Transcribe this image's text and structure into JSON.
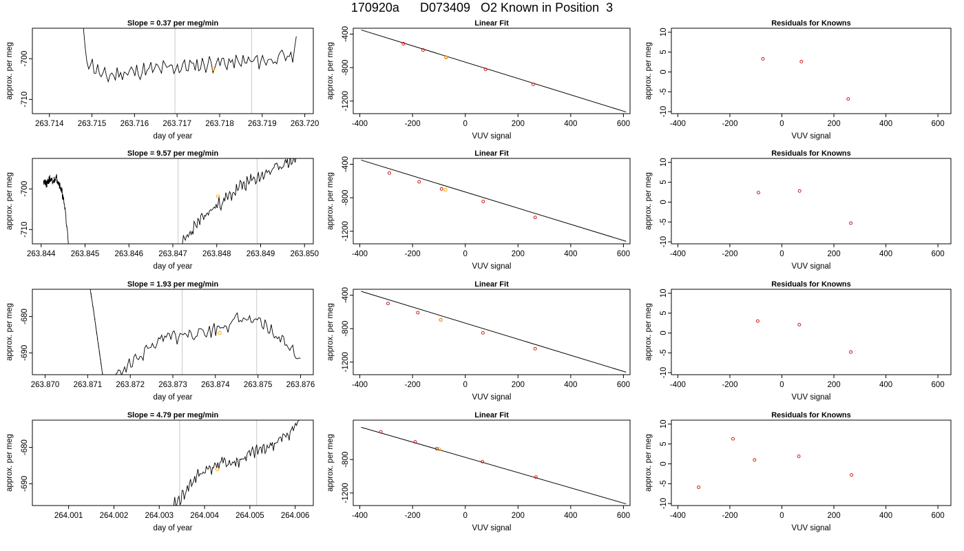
{
  "page_title": "170920a      D073409   O2 Known in Position  3",
  "colors": {
    "trace": "#000000",
    "guide": "#c8c8c8",
    "known_point": "#ffa500",
    "fit_point": "#cc0000",
    "axis": "#000000"
  },
  "rows": [
    {
      "timeseries": {
        "title": "Slope =  0.37  per meg/min",
        "xlabel": "day of year",
        "ylabel": "approx. per meg",
        "xlim": [
          263.7136,
          263.7202
        ],
        "ylim": [
          -713.5,
          -692.5
        ],
        "xticks": [
          263.714,
          263.715,
          263.716,
          263.717,
          263.718,
          263.719,
          263.72
        ],
        "xtick_labels": [
          "263.714",
          "263.715",
          "263.716",
          "263.717",
          "263.718",
          "263.719",
          "263.720"
        ],
        "yticks": [
          -700,
          -710
        ],
        "ytick_labels": [
          "-700",
          "-710"
        ],
        "vlines": [
          263.71695,
          263.71875
        ],
        "trace": {
          "x_start": 263.7148,
          "x_end": 263.7198,
          "y_start": -692.5,
          "y_end": -694.5,
          "base": [
            -699.0,
            -704.5,
            -703.5,
            -703.0,
            -702.5,
            -702.0,
            -701.5,
            -701.0,
            -701.0,
            -700.5,
            -700.0,
            -699.0
          ],
          "amp": 1.6,
          "seed": 11
        },
        "known_point": {
          "x": 263.71785,
          "y": -702.5
        }
      },
      "fit": {
        "title": "Linear Fit",
        "xlabel": "VUV signal",
        "ylabel": "approx. per meg",
        "xlim": [
          -425,
          625
        ],
        "ylim": [
          -1350,
          -330
        ],
        "xticks": [
          -400,
          -200,
          0,
          200,
          400,
          600
        ],
        "xtick_labels": [
          "-400",
          "-200",
          "0",
          "200",
          "400",
          "600"
        ],
        "yticks": [
          -400,
          -800,
          -1200
        ],
        "ytick_labels": [
          "-400",
          "-800",
          "-1200"
        ],
        "line": {
          "x1": -395,
          "y1": -350,
          "x2": 610,
          "y2": -1330
        },
        "points": [
          {
            "x": -235,
            "y": -515
          },
          {
            "x": -160,
            "y": -590
          },
          {
            "x": -73,
            "y": -675
          },
          {
            "x": 77,
            "y": -822
          },
          {
            "x": 258,
            "y": -1000
          }
        ],
        "known_point": {
          "x": -73,
          "y": -678
        }
      },
      "resid": {
        "title": "Residuals for Knowns",
        "xlabel": "VUV signal",
        "ylabel": "approx. per meg",
        "xlim": [
          -425,
          650
        ],
        "ylim": [
          -10.5,
          11
        ],
        "xticks": [
          -400,
          -200,
          0,
          200,
          400,
          600
        ],
        "xtick_labels": [
          "-400",
          "-200",
          "0",
          "200",
          "400",
          "600"
        ],
        "yticks": [
          10,
          5,
          0,
          -5,
          -10
        ],
        "ytick_labels": [
          "10",
          "5",
          "0",
          "-5",
          "-10"
        ],
        "points": [
          {
            "x": -73,
            "y": 3.3
          },
          {
            "x": 75,
            "y": 2.6
          },
          {
            "x": 255,
            "y": -6.8
          }
        ]
      }
    },
    {
      "timeseries": {
        "title": "Slope =  9.57  per meg/min",
        "xlabel": "day of year",
        "ylabel": "approx. per meg",
        "xlim": [
          263.8438,
          263.8502
        ],
        "ylim": [
          -713.5,
          -692.5
        ],
        "xticks": [
          263.844,
          263.845,
          263.846,
          263.847,
          263.848,
          263.849,
          263.85
        ],
        "xtick_labels": [
          "263.844",
          "263.845",
          "263.846",
          "263.847",
          "263.848",
          "263.849",
          "263.850"
        ],
        "yticks": [
          -700,
          -710
        ],
        "ytick_labels": [
          "-700",
          "-710"
        ],
        "vlines": [
          263.84712,
          263.84892
        ],
        "trace_segments": [
          {
            "x_start": 263.84405,
            "x_end": 263.84462,
            "y_start": -698.0,
            "y_end": -713.5,
            "base": [
              -698.0,
              -699.0,
              -697.5,
              -698.5,
              -697.0,
              -698.5,
              -701.0,
              -705.0,
              -713.5
            ],
            "amp": 0.8,
            "seed": 21
          },
          {
            "x_start": 263.84722,
            "x_end": 263.84985,
            "y_start": -713.5,
            "y_end": -692.5,
            "base": [
              -713.5,
              -709.5,
              -706.5,
              -704.0,
              -702.0,
              -699.5,
              -698.0,
              -696.5,
              -695.0,
              -693.5,
              -692.6
            ],
            "amp": 1.3,
            "seed": 23
          }
        ],
        "known_point": {
          "x": 263.84803,
          "y": -701.8
        }
      },
      "fit": {
        "title": "Linear Fit",
        "xlabel": "VUV signal",
        "ylabel": "approx. per meg",
        "xlim": [
          -425,
          625
        ],
        "ylim": [
          -1350,
          -330
        ],
        "xticks": [
          -400,
          -200,
          0,
          200,
          400,
          600
        ],
        "xtick_labels": [
          "-400",
          "-200",
          "0",
          "200",
          "400",
          "600"
        ],
        "yticks": [
          -400,
          -800,
          -1200
        ],
        "ytick_labels": [
          "-400",
          "-800",
          "-1200"
        ],
        "line": {
          "x1": -395,
          "y1": -350,
          "x2": 610,
          "y2": -1320
        },
        "points": [
          {
            "x": -288,
            "y": -505
          },
          {
            "x": -175,
            "y": -610
          },
          {
            "x": -90,
            "y": -695
          },
          {
            "x": 68,
            "y": -845
          },
          {
            "x": 265,
            "y": -1035
          }
        ],
        "known_point": {
          "x": -75,
          "y": -705
        }
      },
      "resid": {
        "title": "Residuals for Knowns",
        "xlabel": "VUV signal",
        "ylabel": "approx. per meg",
        "xlim": [
          -425,
          650
        ],
        "ylim": [
          -10.5,
          11
        ],
        "xticks": [
          -400,
          -200,
          0,
          200,
          400,
          600
        ],
        "xtick_labels": [
          "-400",
          "-200",
          "0",
          "200",
          "400",
          "600"
        ],
        "yticks": [
          10,
          5,
          0,
          -5,
          -10
        ],
        "ytick_labels": [
          "10",
          "5",
          "0",
          "-5",
          "-10"
        ],
        "points": [
          {
            "x": -90,
            "y": 2.4
          },
          {
            "x": 68,
            "y": 2.8
          },
          {
            "x": 265,
            "y": -5.3
          }
        ]
      }
    },
    {
      "timeseries": {
        "title": "Slope =  1.93  per meg/min",
        "xlabel": "day of year",
        "ylabel": "approx. per meg",
        "xlim": [
          263.8697,
          263.8763
        ],
        "ylim": [
          -696,
          -672.5
        ],
        "xticks": [
          263.87,
          263.871,
          263.872,
          263.873,
          263.874,
          263.875,
          263.876
        ],
        "xtick_labels": [
          "263.870",
          "263.871",
          "263.872",
          "263.873",
          "263.874",
          "263.875",
          "263.876"
        ],
        "yticks": [
          -680,
          -690
        ],
        "ytick_labels": [
          "-680",
          "-690"
        ],
        "trace_segments": [
          {
            "x_start": 263.87106,
            "x_end": 263.87135,
            "y_start": -672.5,
            "y_end": -696,
            "base": [
              -672.5,
              -678.0,
              -684.0,
              -690.0,
              -696.0
            ],
            "amp": 0.2,
            "seed": 31
          },
          {
            "x_start": 263.87165,
            "x_end": 263.876,
            "y_start": -696,
            "y_end": -691.5,
            "base": [
              -696.0,
              -694.0,
              -691.0,
              -688.5,
              -686.5,
              -685.5,
              -685.0,
              -684.5,
              -684.0,
              -683.0,
              -681.5,
              -680.5,
              -681.5,
              -683.0,
              -685.5,
              -688.0,
              -691.5
            ],
            "amp": 1.7,
            "seed": 33
          }
        ],
        "vlines": [
          263.87322,
          263.87497
        ],
        "known_point": {
          "x": 263.8741,
          "y": -684.5
        }
      },
      "fit": {
        "title": "Linear Fit",
        "xlabel": "VUV signal",
        "ylabel": "approx. per meg",
        "xlim": [
          -425,
          625
        ],
        "ylim": [
          -1350,
          -330
        ],
        "xticks": [
          -400,
          -200,
          0,
          200,
          400,
          600
        ],
        "xtick_labels": [
          "-400",
          "-200",
          "0",
          "200",
          "400",
          "600"
        ],
        "yticks": [
          -400,
          -800,
          -1200
        ],
        "ytick_labels": [
          "-400",
          "-800",
          "-1200"
        ],
        "line": {
          "x1": -395,
          "y1": -355,
          "x2": 610,
          "y2": -1320
        },
        "points": [
          {
            "x": -293,
            "y": -500
          },
          {
            "x": -180,
            "y": -610
          },
          {
            "x": -93,
            "y": -695
          },
          {
            "x": 67,
            "y": -850
          },
          {
            "x": 265,
            "y": -1040
          }
        ],
        "known_point": {
          "x": -93,
          "y": -695
        }
      },
      "resid": {
        "title": "Residuals for Knowns",
        "xlabel": "VUV signal",
        "ylabel": "approx. per meg",
        "xlim": [
          -425,
          650
        ],
        "ylim": [
          -10.5,
          11
        ],
        "xticks": [
          -400,
          -200,
          0,
          200,
          400,
          600
        ],
        "xtick_labels": [
          "-400",
          "-200",
          "0",
          "200",
          "400",
          "600"
        ],
        "yticks": [
          10,
          5,
          0,
          -5,
          -10
        ],
        "ytick_labels": [
          "10",
          "5",
          "0",
          "-5",
          "-10"
        ],
        "points": [
          {
            "x": -93,
            "y": 3.0
          },
          {
            "x": 67,
            "y": 2.1
          },
          {
            "x": 265,
            "y": -4.8
          }
        ]
      }
    },
    {
      "timeseries": {
        "title": "Slope =  4.79  per meg/min",
        "xlabel": "day of year",
        "ylabel": "approx. per meg",
        "xlim": [
          264.0002,
          264.0064
        ],
        "ylim": [
          -696,
          -672.5
        ],
        "xticks": [
          264.001,
          264.002,
          264.003,
          264.004,
          264.005,
          264.006
        ],
        "xtick_labels": [
          "264.001",
          "264.002",
          "264.003",
          "264.004",
          "264.005",
          "264.006"
        ],
        "yticks": [
          -680,
          -690
        ],
        "ytick_labels": [
          "-680",
          "-690"
        ],
        "trace_segments": [
          {
            "x_start": 264.00332,
            "x_end": 264.0061,
            "y_start": -696,
            "y_end": -672.5,
            "base": [
              -696.0,
              -693.5,
              -690.0,
              -687.5,
              -686.0,
              -685.0,
              -684.0,
              -684.5,
              -683.5,
              -682.0,
              -681.0,
              -680.0,
              -679.0,
              -677.5,
              -675.5,
              -672.6
            ],
            "amp": 1.4,
            "seed": 41
          }
        ],
        "vlines": [
          264.00345,
          264.00515
        ],
        "known_point": {
          "x": 264.00428,
          "y": -686.0
        }
      },
      "fit": {
        "title": "Linear Fit",
        "xlabel": "VUV signal",
        "ylabel": "approx. per meg",
        "xlim": [
          -425,
          625
        ],
        "ylim": [
          -1350,
          -330
        ],
        "xticks": [
          -400,
          -200,
          0,
          200,
          400,
          600
        ],
        "xtick_labels": [
          "-400",
          "-200",
          "0",
          "200",
          "400",
          "600"
        ],
        "yticks": [
          -800,
          -1200
        ],
        "ytick_labels": [
          "-800",
          "-1200"
        ],
        "line": {
          "x1": -395,
          "y1": -415,
          "x2": 610,
          "y2": -1330
        },
        "points": [
          {
            "x": -320,
            "y": -470
          },
          {
            "x": -190,
            "y": -590
          },
          {
            "x": -108,
            "y": -670
          },
          {
            "x": 65,
            "y": -825
          },
          {
            "x": 268,
            "y": -1010
          }
        ],
        "known_point": {
          "x": -100,
          "y": -675
        }
      },
      "resid": {
        "title": "Residuals for Knowns",
        "xlabel": "VUV signal",
        "ylabel": "approx. per meg",
        "xlim": [
          -425,
          650
        ],
        "ylim": [
          -10.5,
          11
        ],
        "xticks": [
          -400,
          -200,
          0,
          200,
          400,
          600
        ],
        "xtick_labels": [
          "-400",
          "-200",
          "0",
          "200",
          "400",
          "600"
        ],
        "yticks": [
          10,
          5,
          0,
          -5,
          -10
        ],
        "ytick_labels": [
          "10",
          "5",
          "0",
          "-5",
          "-10"
        ],
        "points": [
          {
            "x": -320,
            "y": -5.9
          },
          {
            "x": -188,
            "y": 6.3
          },
          {
            "x": -105,
            "y": 1.0
          },
          {
            "x": 65,
            "y": 1.9
          },
          {
            "x": 268,
            "y": -2.8
          }
        ]
      }
    }
  ],
  "chart_data": [
    {
      "type": "line",
      "title": "Slope =  0.37  per meg/min",
      "xlabel": "day of year",
      "ylabel": "approx. per meg",
      "xlim": [
        263.7136,
        263.7202
      ],
      "ylim": [
        -713.5,
        -692.5
      ],
      "known": {
        "x": 263.71785,
        "y": -702.5
      }
    },
    {
      "type": "scatter",
      "title": "Linear Fit",
      "xlabel": "VUV signal",
      "ylabel": "approx. per meg",
      "x": [
        -235,
        -160,
        -73,
        77,
        258
      ],
      "y": [
        -515,
        -590,
        -675,
        -822,
        -1000
      ]
    },
    {
      "type": "scatter",
      "title": "Residuals for Knowns",
      "xlabel": "VUV signal",
      "ylabel": "approx. per meg",
      "x": [
        -73,
        75,
        255
      ],
      "y": [
        3.3,
        2.6,
        -6.8
      ]
    },
    {
      "type": "line",
      "title": "Slope =  9.57  per meg/min",
      "xlabel": "day of year",
      "ylabel": "approx. per meg",
      "xlim": [
        263.8438,
        263.8502
      ],
      "ylim": [
        -713.5,
        -692.5
      ],
      "known": {
        "x": 263.84803,
        "y": -701.8
      }
    },
    {
      "type": "scatter",
      "title": "Linear Fit",
      "xlabel": "VUV signal",
      "ylabel": "approx. per meg",
      "x": [
        -288,
        -175,
        -90,
        68,
        265
      ],
      "y": [
        -505,
        -610,
        -695,
        -845,
        -1035
      ]
    },
    {
      "type": "scatter",
      "title": "Residuals for Knowns",
      "xlabel": "VUV signal",
      "ylabel": "approx. per meg",
      "x": [
        -90,
        68,
        265
      ],
      "y": [
        2.4,
        2.8,
        -5.3
      ]
    },
    {
      "type": "line",
      "title": "Slope =  1.93  per meg/min",
      "xlabel": "day of year",
      "ylabel": "approx. per meg",
      "xlim": [
        263.8697,
        263.8763
      ],
      "ylim": [
        -696,
        -672.5
      ],
      "known": {
        "x": 263.8741,
        "y": -684.5
      }
    },
    {
      "type": "scatter",
      "title": "Linear Fit",
      "xlabel": "VUV signal",
      "ylabel": "approx. per meg",
      "x": [
        -293,
        -180,
        -93,
        67,
        265
      ],
      "y": [
        -500,
        -610,
        -695,
        -850,
        -1040
      ]
    },
    {
      "type": "scatter",
      "title": "Residuals for Knowns",
      "xlabel": "VUV signal",
      "ylabel": "approx. per meg",
      "x": [
        -93,
        67,
        265
      ],
      "y": [
        3.0,
        2.1,
        -4.8
      ]
    },
    {
      "type": "line",
      "title": "Slope =  4.79  per meg/min",
      "xlabel": "day of year",
      "ylabel": "approx. per meg",
      "xlim": [
        264.0002,
        264.0064
      ],
      "ylim": [
        -696,
        -672.5
      ],
      "known": {
        "x": 264.00428,
        "y": -686.0
      }
    },
    {
      "type": "scatter",
      "title": "Linear Fit",
      "xlabel": "VUV signal",
      "ylabel": "approx. per meg",
      "x": [
        -320,
        -190,
        -108,
        65,
        268
      ],
      "y": [
        -470,
        -590,
        -670,
        -825,
        -1010
      ]
    },
    {
      "type": "scatter",
      "title": "Residuals for Knowns",
      "xlabel": "VUV signal",
      "ylabel": "approx. per meg",
      "x": [
        -320,
        -188,
        -105,
        65,
        268
      ],
      "y": [
        -5.9,
        6.3,
        1.0,
        1.9,
        -2.8
      ]
    }
  ]
}
